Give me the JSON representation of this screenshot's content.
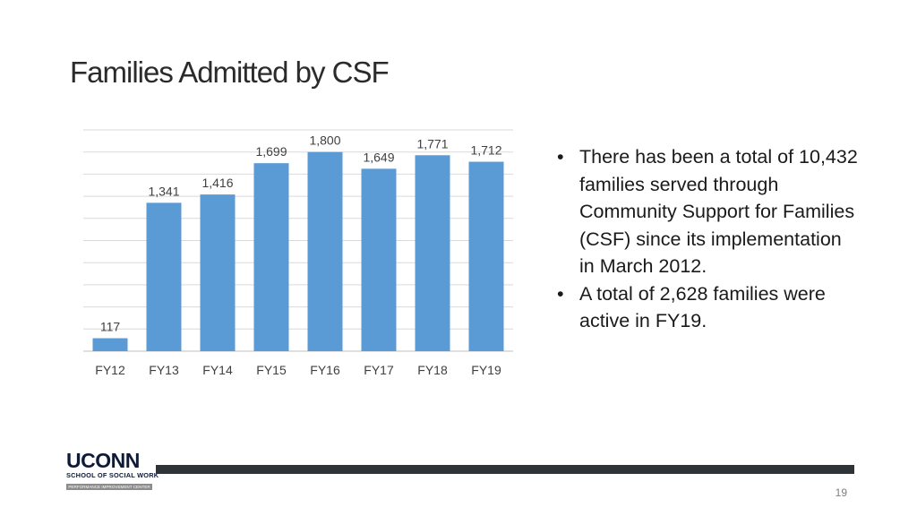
{
  "slide": {
    "title": "Families Admitted by CSF",
    "page_number": "19"
  },
  "chart_data": {
    "type": "bar",
    "categories": [
      "FY12",
      "FY13",
      "FY14",
      "FY15",
      "FY16",
      "FY17",
      "FY18",
      "FY19"
    ],
    "values": [
      117,
      1341,
      1416,
      1699,
      1800,
      1649,
      1771,
      1712
    ],
    "data_labels": [
      "117",
      "1,341",
      "1,416",
      "1,699",
      "1,800",
      "1,649",
      "1,771",
      "1,712"
    ],
    "title": "",
    "xlabel": "",
    "ylabel": "",
    "ylim": [
      0,
      2000
    ],
    "grid": true,
    "legend": "none",
    "bar_color": "#5b9bd5"
  },
  "bullets": [
    "There has been a total of 10,432 families served through Community Support for Families (CSF) since its implementation in March 2012.",
    "A total of 2,628  families were active in FY19."
  ],
  "logo": {
    "name": "UCONN",
    "subtitle": "SCHOOL OF SOCIAL WORK",
    "strip": "PERFORMANCE IMPROVEMENT CENTER"
  },
  "colors": {
    "accent": "#5b9bd5",
    "footer_bar": "#2e3338",
    "logo": "#0e1a38"
  }
}
